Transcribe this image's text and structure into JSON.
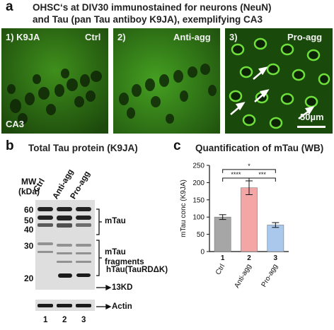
{
  "panel_a": {
    "letter": "a",
    "title_line1": "OHSC‘s at DIV30 immunostained for neurons (NeuN)",
    "title_line2": "and Tau (pan Tau antiboy K9JA), exemplifying CA3",
    "images": [
      {
        "label": "1) K9JA",
        "corner": "Ctrl",
        "bottom_label": "CA3"
      },
      {
        "label": "2)",
        "corner": "Anti-agg"
      },
      {
        "label": "3)",
        "corner": "Pro-agg",
        "scale": "50µm"
      }
    ]
  },
  "panel_b": {
    "letter": "b",
    "title": "Total Tau protein (K9JA)",
    "mw_label": "MW",
    "kda_label": "(kDa)",
    "lanes": [
      "Ctrl",
      "Anti-agg",
      "Pro-agg"
    ],
    "lane_numbers": [
      "1",
      "2",
      "3"
    ],
    "markers": [
      "60",
      "50",
      "40",
      "30",
      "20"
    ],
    "annotations": {
      "mtau": "mTau",
      "fragments_1": "mTau",
      "fragments_2": "fragments",
      "htau": "hTau(TauRDΔK)",
      "kd13": "13KD",
      "actin": "Actin"
    }
  },
  "panel_c": {
    "letter": "c",
    "title": "Quantification of mTau (WB)",
    "significance": [
      "*",
      "****",
      "***"
    ]
  },
  "chart_data": {
    "type": "bar",
    "title": "Quantification of mTau (WB)",
    "ylabel": "mTau conc (K9JA)",
    "xlabel": "",
    "categories": [
      "Ctrl",
      "Anti-agg",
      "Pro-agg"
    ],
    "category_numbers": [
      "1",
      "2",
      "3"
    ],
    "values": [
      100,
      185,
      77
    ],
    "errors": [
      7,
      20,
      7
    ],
    "colors": [
      "#a6a6a6",
      "#f4a6a6",
      "#a9c8ec"
    ],
    "ylim": [
      0,
      250
    ],
    "yticks": [
      "0",
      "50",
      "100",
      "150",
      "200",
      "250"
    ]
  }
}
